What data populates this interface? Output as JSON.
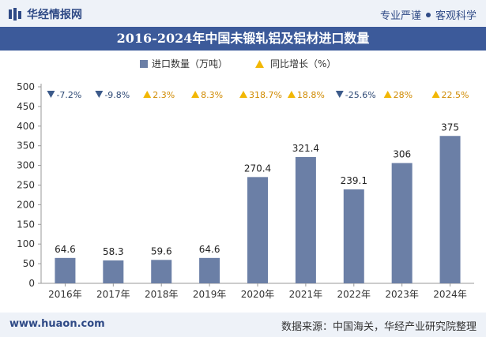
{
  "header": {
    "brand": "华经情报网",
    "slogan_left": "专业严谨",
    "slogan_right": "客观科学"
  },
  "chart_data": {
    "type": "bar",
    "title": "2016-2024年中国未锻轧铝及铝材进口数量",
    "categories": [
      "2016年",
      "2017年",
      "2018年",
      "2019年",
      "2020年",
      "2021年",
      "2022年",
      "2023年",
      "2024年"
    ],
    "series": [
      {
        "name": "进口数量（万吨）",
        "values": [
          64.6,
          58.3,
          59.6,
          64.6,
          270.4,
          321.4,
          239.1,
          306,
          375
        ]
      }
    ],
    "growth": {
      "name": "同比增长（%）",
      "labels": [
        "-7.2%",
        "-9.8%",
        "2.3%",
        "8.3%",
        "318.7%",
        "18.8%",
        "-25.6%",
        "28%",
        "22.5%"
      ],
      "direction": [
        "down",
        "down",
        "up",
        "up",
        "up",
        "up",
        "down",
        "up",
        "up"
      ]
    },
    "ylim": [
      0,
      500
    ],
    "yticks": [
      0,
      50,
      100,
      150,
      200,
      250,
      300,
      350,
      400,
      450,
      500
    ],
    "value_labels": [
      "64.6",
      "58.3",
      "59.6",
      "64.6",
      "270.4",
      "321.4",
      "239.1",
      "306",
      "375"
    ],
    "legend_position": "top-center",
    "grid": false,
    "colors": {
      "bar": "#6b7fa6",
      "up": "#f2b705",
      "down": "#3c5a8a",
      "title_bg": "#3c5a9a"
    }
  },
  "footer": {
    "url": "www.huaon.com",
    "source": "数据来源：中国海关，华经产业研究院整理"
  }
}
